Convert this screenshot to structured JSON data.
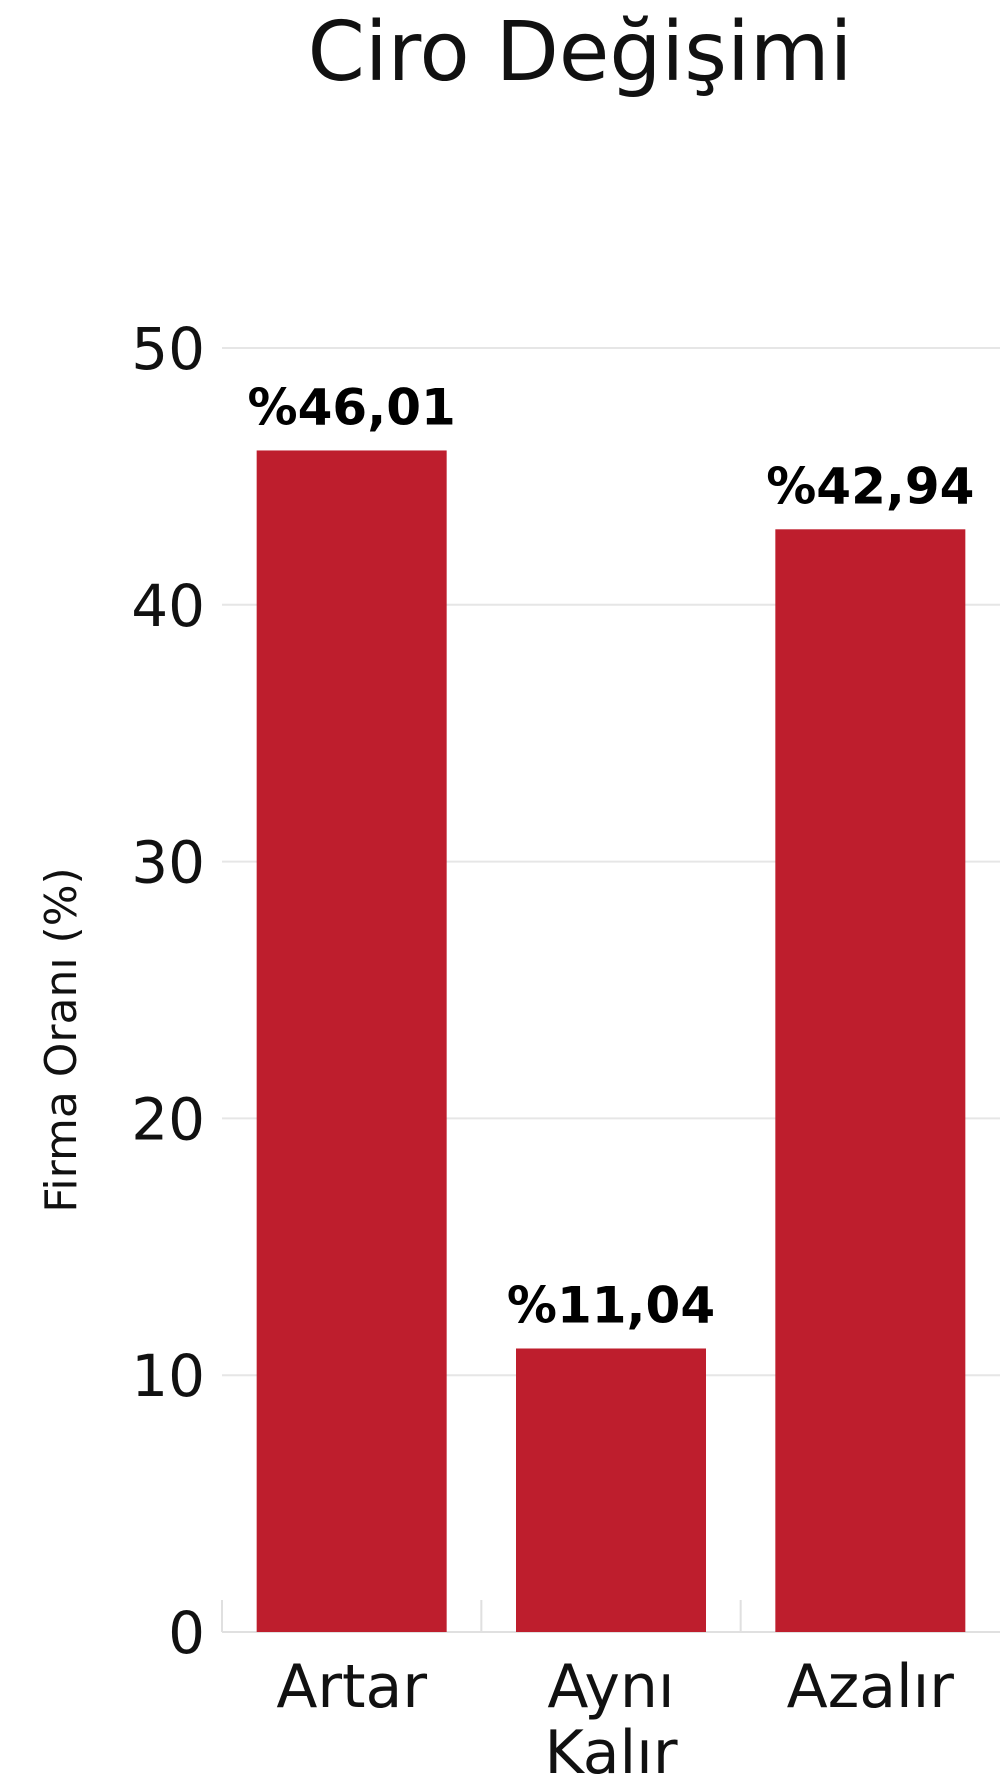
{
  "chart_data": {
    "type": "bar",
    "title": "Ciro Değişimi",
    "xlabel": "",
    "ylabel": "Firma Oranı (%)",
    "ylim": [
      0,
      50
    ],
    "yticks": [
      0,
      10,
      20,
      30,
      40,
      50
    ],
    "grid": true,
    "categories": [
      [
        "Artar"
      ],
      [
        "Aynı",
        "Kalır"
      ],
      [
        "Azalır"
      ]
    ],
    "values": [
      46.01,
      11.04,
      42.94
    ],
    "data_labels": [
      "%46,01",
      "%11,04",
      "%42,94"
    ],
    "colors": {
      "bar": "#be1e2d"
    }
  }
}
